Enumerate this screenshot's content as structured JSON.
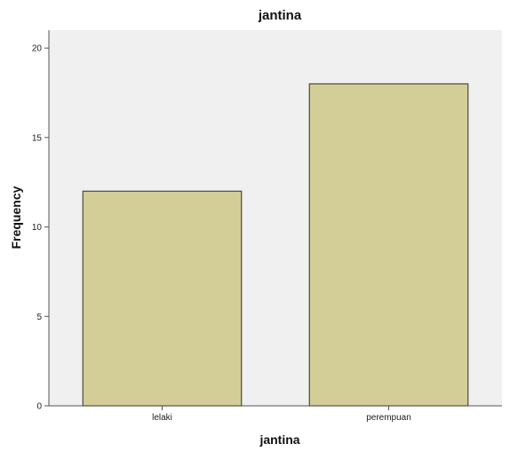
{
  "chart_data": {
    "type": "bar",
    "title": "jantina",
    "xlabel": "jantina",
    "ylabel": "Frequency",
    "categories": [
      "lelaki",
      "perempuan"
    ],
    "values": [
      12,
      18
    ],
    "ylim": [
      0,
      21
    ],
    "yticks": [
      0,
      5,
      10,
      15,
      20
    ],
    "grid": false,
    "legend": "none",
    "colors": {
      "bar_fill": "#d3cd98",
      "bar_stroke": "#4a4a3a",
      "plot_background": "#f0f0f0",
      "axis": "#555555"
    }
  }
}
